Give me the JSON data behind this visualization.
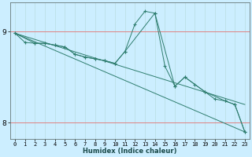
{
  "title": "",
  "xlabel": "Humidex (Indice chaleur)",
  "bg_color": "#cceeff",
  "line_color": "#2e7d6e",
  "grid_h_color": "#e08080",
  "grid_v_color": "#b8dde0",
  "xlim": [
    -0.5,
    23.5
  ],
  "ylim": [
    7.82,
    9.32
  ],
  "yticks": [
    8,
    9
  ],
  "xticks": [
    0,
    1,
    2,
    3,
    4,
    5,
    6,
    7,
    8,
    9,
    10,
    11,
    12,
    13,
    14,
    15,
    16,
    17,
    18,
    19,
    20,
    21,
    22,
    23
  ],
  "series": [
    {
      "x": [
        0,
        1,
        2,
        3,
        4,
        5,
        6,
        7,
        8,
        9,
        10,
        11,
        12,
        13,
        14,
        15,
        16,
        17,
        18,
        19,
        20,
        21,
        22,
        23
      ],
      "y": [
        8.98,
        8.88,
        8.87,
        8.87,
        8.85,
        8.83,
        8.75,
        8.72,
        8.7,
        8.68,
        8.65,
        8.78,
        9.08,
        9.22,
        9.2,
        8.62,
        8.4,
        8.5,
        8.42,
        8.34,
        8.26,
        8.24,
        8.2,
        7.9
      ],
      "markers": true
    },
    {
      "x": [
        0,
        2,
        3,
        4,
        5,
        6,
        7,
        8,
        9,
        10,
        11,
        14,
        16,
        17,
        19,
        21,
        22,
        23
      ],
      "y": [
        8.98,
        8.87,
        8.87,
        8.85,
        8.83,
        8.75,
        8.72,
        8.7,
        8.68,
        8.65,
        8.78,
        9.2,
        8.4,
        8.5,
        8.34,
        8.24,
        8.2,
        7.9
      ],
      "markers": true
    },
    {
      "x": [
        0,
        23
      ],
      "y": [
        8.98,
        7.9
      ],
      "markers": false
    },
    {
      "x": [
        0,
        23
      ],
      "y": [
        8.98,
        8.2
      ],
      "markers": false
    }
  ]
}
